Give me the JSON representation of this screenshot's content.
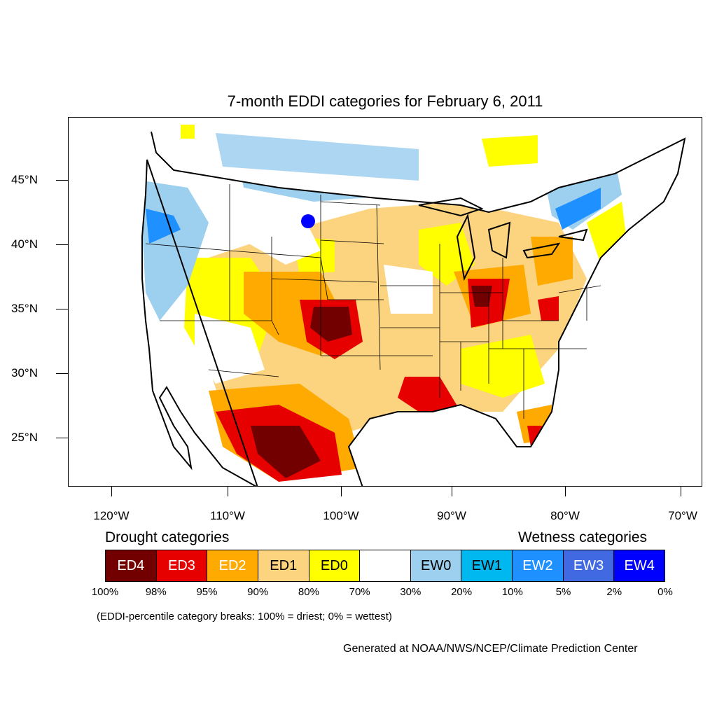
{
  "title": "7-month EDDI categories for February 6, 2011",
  "lat_labels": [
    "45°N",
    "40°N",
    "35°N",
    "30°N",
    "25°N"
  ],
  "lon_labels": [
    "120°W",
    "110°W",
    "100°W",
    "90°W",
    "80°W",
    "70°W"
  ],
  "legend": {
    "drought_heading": "Drought categories",
    "wetness_heading": "Wetness categories",
    "categories": [
      {
        "label": "ED4",
        "color": "#730000",
        "text_color": "#ffffff"
      },
      {
        "label": "ED3",
        "color": "#e60000",
        "text_color": "#ffffff"
      },
      {
        "label": "ED2",
        "color": "#ffaa00",
        "text_color": "#ffffff"
      },
      {
        "label": "ED1",
        "color": "#fcd37f",
        "text_color": "#000000"
      },
      {
        "label": "ED0",
        "color": "#ffff00",
        "text_color": "#000000"
      },
      {
        "label": "",
        "color": "#ffffff",
        "text_color": "#000000"
      },
      {
        "label": "EW0",
        "color": "#9dcfee",
        "text_color": "#000000"
      },
      {
        "label": "EW1",
        "color": "#00b8f0",
        "text_color": "#000000"
      },
      {
        "label": "EW2",
        "color": "#1e90ff",
        "text_color": "#ffffff"
      },
      {
        "label": "EW3",
        "color": "#4169e1",
        "text_color": "#ffffff"
      },
      {
        "label": "EW4",
        "color": "#0000ff",
        "text_color": "#ffffff"
      }
    ],
    "breaks": [
      "100%",
      "98%",
      "95%",
      "90%",
      "80%",
      "70%",
      "30%",
      "20%",
      "10%",
      "5%",
      "2%",
      "0%"
    ]
  },
  "note": "(EDDI-percentile category breaks: 100% = driest; 0% = wettest)",
  "credit": "Generated at NOAA/NWS/NCEP/Climate Prediction Center"
}
